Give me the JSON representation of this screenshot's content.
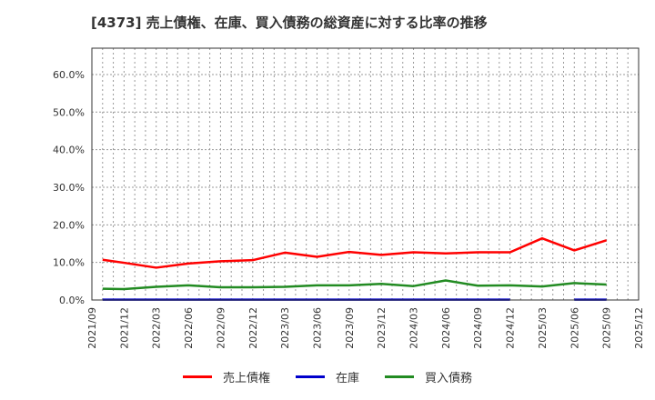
{
  "title": "[4373]  売上債権、在庫、買入債務の総資産に対する比率の推移",
  "chart_data": {
    "type": "line",
    "title": "[4373]  売上債権、在庫、買入債務の総資産に対する比率の推移",
    "xlabel": "",
    "ylabel": "",
    "ylim": [
      0,
      67
    ],
    "grid": true,
    "legend_position": "bottom",
    "y_ticks": [
      "0.0%",
      "10.0%",
      "20.0%",
      "30.0%",
      "40.0%",
      "50.0%",
      "60.0%"
    ],
    "y_tick_values": [
      0,
      10,
      20,
      30,
      40,
      50,
      60
    ],
    "x_ticks": [
      "2021/09",
      "2021/12",
      "2022/03",
      "2022/06",
      "2022/09",
      "2022/12",
      "2023/03",
      "2023/06",
      "2023/09",
      "2023/12",
      "2024/03",
      "2024/06",
      "2024/09",
      "2024/12",
      "2025/03",
      "2025/06",
      "2025/09",
      "2025/12"
    ],
    "x": [
      "2021/10",
      "2021/12",
      "2022/03",
      "2022/06",
      "2022/09",
      "2022/12",
      "2023/03",
      "2023/06",
      "2023/09",
      "2023/12",
      "2024/03",
      "2024/06",
      "2024/09",
      "2024/12",
      "2025/03",
      "2025/06",
      "2025/09"
    ],
    "x_month_offsets": [
      1,
      3,
      6,
      9,
      12,
      15,
      18,
      21,
      24,
      27,
      30,
      33,
      36,
      39,
      42,
      45,
      48
    ],
    "series": [
      {
        "name": "売上債権",
        "color": "#ff0000",
        "values": [
          10.7,
          9.9,
          8.6,
          9.7,
          10.3,
          10.6,
          12.6,
          11.5,
          12.8,
          12.0,
          12.7,
          12.4,
          12.7,
          12.7,
          16.4,
          13.2,
          15.9
        ]
      },
      {
        "name": "在庫",
        "color": "#0000cc",
        "values": [
          0.1,
          0.1,
          0.1,
          0.1,
          0.1,
          0.1,
          0.1,
          0.1,
          0.1,
          0.1,
          0.1,
          0.1,
          0.1,
          0.1,
          null,
          0.1,
          0.1
        ]
      },
      {
        "name": "買入債務",
        "color": "#228b22",
        "values": [
          3.0,
          2.9,
          3.5,
          3.9,
          3.4,
          3.4,
          3.5,
          3.9,
          3.9,
          4.3,
          3.7,
          5.2,
          3.8,
          3.9,
          3.6,
          4.5,
          4.1
        ]
      }
    ]
  },
  "legend": [
    {
      "label": "売上債権",
      "color": "#ff0000"
    },
    {
      "label": "在庫",
      "color": "#0000cc"
    },
    {
      "label": "買入債務",
      "color": "#228b22"
    }
  ]
}
